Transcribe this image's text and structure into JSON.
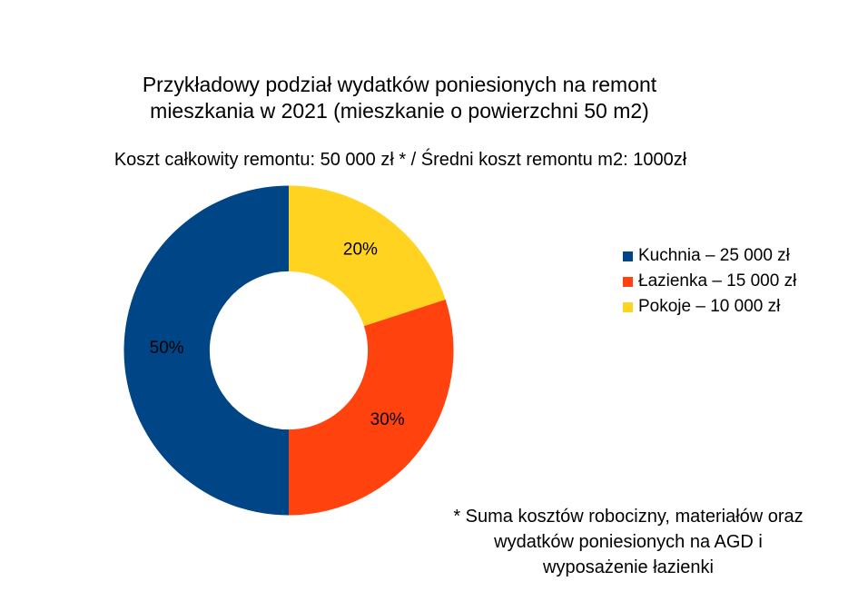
{
  "page": {
    "background_color": "#ffffff",
    "text_color": "#000000"
  },
  "header": {
    "title_lines": [
      "Przykładowy podział wydatków poniesionych na remont",
      "mieszkania w 2021 (mieszkanie o powierzchni 50 m2)"
    ],
    "subtitle": "Koszt całkowity remontu: 50 000 zł * / Średni koszt remontu m2: 1000zł"
  },
  "chart_data": {
    "type": "pie",
    "subtype": "donut",
    "title": "Przykładowy podział wydatków poniesionych na remont mieszkania w 2021 (mieszkanie o powierzchni 50 m2)",
    "subtitle": "Koszt całkowity remontu: 50 000 zł * / Średni koszt remontu m2: 1000zł",
    "unit": "zł",
    "total_value": 50000,
    "start_angle": "top",
    "direction": "counterclockwise",
    "inner_radius_ratio": 0.48,
    "legend_position": "right",
    "slices": [
      {
        "name": "kuchnia",
        "label": "Kuchnia",
        "value": 25000,
        "percent": 50,
        "percent_label": "50%",
        "legend_label": "Kuchnia – 25 000 zł",
        "color": "#004586"
      },
      {
        "name": "lazienka",
        "label": "Łazienka",
        "value": 15000,
        "percent": 30,
        "percent_label": "30%",
        "legend_label": "Łazienka – 15 000 zł",
        "color": "#FF420E"
      },
      {
        "name": "pokoje",
        "label": "Pokoje",
        "value": 10000,
        "percent": 20,
        "percent_label": "20%",
        "legend_label": "Pokoje – 10 000 zł",
        "color": "#FFD320"
      }
    ]
  },
  "footnote": {
    "lines": [
      "* Suma kosztów robocizny, materiałów oraz",
      "wydatków poniesionych na AGD i",
      "wyposażenie łazienki"
    ]
  }
}
